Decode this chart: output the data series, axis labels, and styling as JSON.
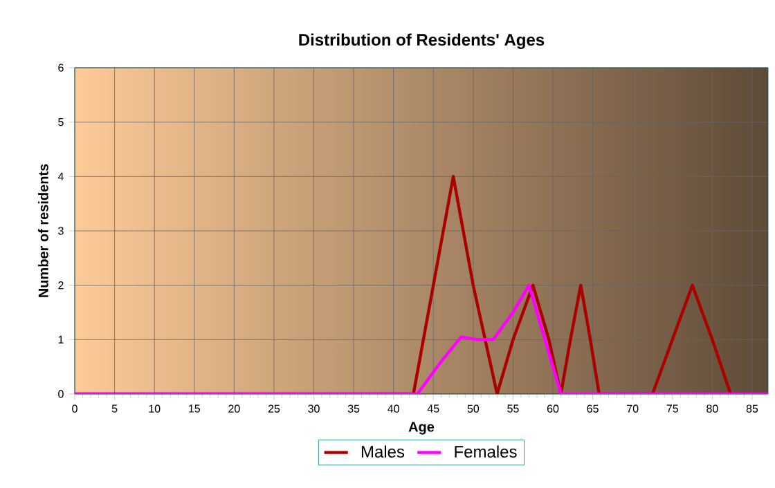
{
  "chart_data": {
    "type": "line",
    "title": "Distribution of Residents' Ages",
    "xlabel": "Age",
    "ylabel": "Number of residents",
    "xlim": [
      0,
      87
    ],
    "ylim": [
      0,
      6
    ],
    "xticks": [
      0,
      5,
      10,
      15,
      20,
      25,
      30,
      35,
      40,
      45,
      50,
      55,
      60,
      65,
      70,
      75,
      80,
      85
    ],
    "yticks": [
      0,
      1,
      2,
      3,
      4,
      5,
      6
    ],
    "grid": true,
    "legend": "bottom",
    "marker": "none",
    "line_style": "solid",
    "series": [
      {
        "name": "Males",
        "color": "#aa0000",
        "x": [
          0,
          42.5,
          45,
          47.5,
          50,
          53,
          55,
          57.5,
          59.5,
          61,
          62.2,
          63.5,
          64.7,
          65.8,
          72.5,
          75,
          77.5,
          80,
          82.3,
          87
        ],
        "values": [
          0,
          0,
          2,
          4,
          2,
          0,
          1,
          2,
          1,
          0,
          1,
          2,
          1,
          0,
          0,
          1,
          2,
          1,
          0,
          0
        ]
      },
      {
        "name": "Females",
        "color": "#ff00ff",
        "x": [
          0,
          43,
          46,
          48.5,
          50.5,
          52.5,
          55,
          57,
          59,
          61,
          87
        ],
        "values": [
          0,
          0,
          0.6,
          1.05,
          1,
          1,
          1.5,
          2,
          1,
          0,
          0
        ]
      }
    ]
  }
}
